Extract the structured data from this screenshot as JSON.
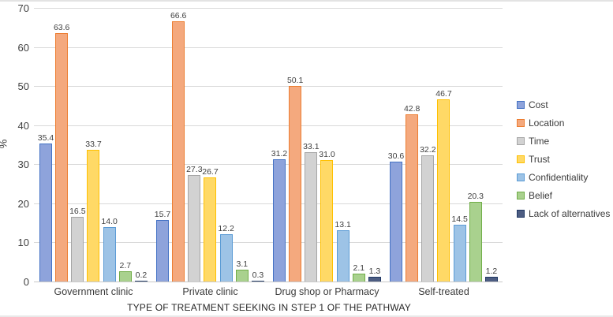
{
  "figure": {
    "y_axis_title": "%",
    "x_axis_title": "TYPE OF TREATMENT SEEKING IN STEP 1 OF THE PATHWAY"
  },
  "colors": {
    "gridline": "#d9d9d9",
    "label_text": "#404040"
  },
  "chart_data": {
    "type": "bar",
    "title": "",
    "xlabel": "TYPE OF TREATMENT SEEKING IN STEP 1 OF THE PATHWAY",
    "ylabel": "%",
    "ylim": [
      0,
      70
    ],
    "ytick_step": 10,
    "yticks": [
      0,
      10,
      20,
      30,
      40,
      50,
      60,
      70
    ],
    "grid": true,
    "legend_position": "right",
    "value_labels": true,
    "value_label_format": "one_decimal",
    "categories": [
      "Government clinic",
      "Private clinic",
      "Drug shop or Pharmacy",
      "Self-treated"
    ],
    "series": [
      {
        "name": "Cost",
        "fill": "#8EA3DB",
        "border": "#4472C4",
        "values": [
          35.4,
          15.7,
          31.2,
          30.6
        ]
      },
      {
        "name": "Location",
        "fill": "#F4A97E",
        "border": "#ED7D31",
        "values": [
          63.6,
          66.6,
          50.1,
          42.8
        ]
      },
      {
        "name": "Time",
        "fill": "#D2D2D2",
        "border": "#A5A5A5",
        "values": [
          16.5,
          27.3,
          33.1,
          32.2
        ]
      },
      {
        "name": "Trust",
        "fill": "#FFD966",
        "border": "#FFC000",
        "values": [
          33.7,
          26.7,
          31.0,
          46.7
        ]
      },
      {
        "name": "Confidentiality",
        "fill": "#9DC3E6",
        "border": "#5B9BD5",
        "values": [
          14.0,
          12.2,
          13.1,
          14.5
        ]
      },
      {
        "name": "Belief",
        "fill": "#A9D18E",
        "border": "#70AD47",
        "values": [
          2.7,
          3.1,
          2.1,
          20.3
        ]
      },
      {
        "name": "Lack of alternatives",
        "fill": "#4D5D82",
        "border": "#1F3864",
        "values": [
          0.2,
          0.3,
          1.3,
          1.2
        ]
      }
    ]
  }
}
